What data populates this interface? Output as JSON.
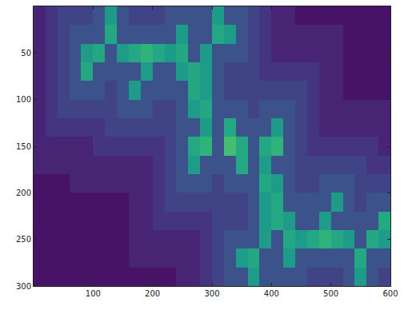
{
  "chart_data": {
    "type": "heatmap",
    "x": [
      10,
      30,
      50,
      70,
      90,
      110,
      130,
      150,
      170,
      190,
      210,
      230,
      250,
      270,
      290,
      310,
      330,
      350,
      370,
      390,
      410,
      430,
      450,
      470,
      490,
      510,
      530,
      550,
      570,
      590
    ],
    "y": [
      10,
      30,
      50,
      70,
      90,
      110,
      130,
      150,
      170,
      190,
      210,
      230,
      250,
      270,
      290
    ],
    "z": [
      [
        2,
        3,
        4,
        4,
        4,
        5,
        11,
        5,
        4,
        4,
        4,
        5,
        5,
        5,
        5,
        11,
        5,
        5,
        4,
        3,
        2,
        2,
        1,
        1,
        1,
        1,
        1,
        1,
        1,
        1
      ],
      [
        2,
        3,
        4,
        5,
        5,
        5,
        12,
        5,
        5,
        5,
        5,
        5,
        11,
        5,
        5,
        12,
        11,
        5,
        4,
        3,
        2,
        2,
        2,
        2,
        2,
        2,
        1,
        1,
        1,
        1
      ],
      [
        2,
        3,
        4,
        5,
        11,
        12,
        5,
        11,
        12,
        13,
        12,
        11,
        12,
        5,
        11,
        5,
        5,
        5,
        4,
        3,
        2,
        2,
        2,
        2,
        2,
        2,
        1,
        1,
        1,
        1
      ],
      [
        2,
        3,
        4,
        5,
        12,
        5,
        5,
        5,
        5,
        11,
        5,
        5,
        11,
        12,
        11,
        5,
        4,
        4,
        4,
        3,
        3,
        3,
        3,
        3,
        2,
        2,
        1,
        1,
        1,
        1
      ],
      [
        2,
        3,
        4,
        5,
        5,
        5,
        4,
        5,
        11,
        5,
        5,
        5,
        5,
        12,
        11,
        5,
        4,
        4,
        4,
        4,
        4,
        4,
        4,
        3,
        2,
        2,
        1,
        1,
        1,
        1
      ],
      [
        2,
        3,
        4,
        4,
        4,
        4,
        4,
        5,
        5,
        5,
        4,
        4,
        5,
        11,
        12,
        5,
        5,
        5,
        4,
        5,
        5,
        5,
        4,
        3,
        2,
        2,
        2,
        2,
        2,
        2
      ],
      [
        2,
        3,
        3,
        3,
        3,
        3,
        4,
        4,
        4,
        4,
        4,
        4,
        5,
        5,
        11,
        5,
        12,
        5,
        5,
        5,
        11,
        5,
        4,
        3,
        2,
        2,
        2,
        2,
        2,
        2
      ],
      [
        2,
        2,
        2,
        2,
        2,
        3,
        3,
        3,
        3,
        3,
        3,
        4,
        5,
        12,
        13,
        5,
        14,
        12,
        5,
        12,
        13,
        5,
        4,
        3,
        3,
        3,
        3,
        3,
        3,
        2
      ],
      [
        2,
        2,
        2,
        2,
        2,
        2,
        2,
        2,
        2,
        2,
        3,
        4,
        5,
        11,
        5,
        5,
        5,
        12,
        5,
        11,
        5,
        5,
        4,
        4,
        4,
        4,
        4,
        4,
        3,
        3
      ],
      [
        1,
        1,
        1,
        2,
        2,
        2,
        2,
        2,
        2,
        2,
        3,
        4,
        5,
        5,
        5,
        4,
        5,
        5,
        5,
        12,
        11,
        5,
        4,
        4,
        5,
        5,
        5,
        4,
        4,
        4
      ],
      [
        1,
        1,
        1,
        1,
        1,
        1,
        1,
        1,
        2,
        2,
        3,
        4,
        4,
        4,
        4,
        4,
        4,
        4,
        5,
        11,
        12,
        5,
        5,
        5,
        5,
        11,
        5,
        4,
        5,
        5
      ],
      [
        1,
        1,
        1,
        1,
        1,
        1,
        1,
        1,
        2,
        2,
        3,
        3,
        3,
        3,
        3,
        4,
        4,
        4,
        5,
        11,
        12,
        11,
        5,
        5,
        11,
        5,
        5,
        5,
        5,
        12
      ],
      [
        1,
        1,
        1,
        1,
        1,
        1,
        1,
        1,
        2,
        2,
        2,
        2,
        2,
        2,
        3,
        4,
        5,
        5,
        5,
        11,
        5,
        12,
        11,
        12,
        13,
        12,
        11,
        5,
        12,
        11
      ],
      [
        1,
        1,
        1,
        1,
        1,
        1,
        1,
        1,
        2,
        2,
        2,
        2,
        2,
        2,
        3,
        4,
        5,
        11,
        12,
        5,
        5,
        11,
        5,
        5,
        5,
        5,
        5,
        12,
        5,
        5
      ],
      [
        1,
        1,
        1,
        1,
        1,
        1,
        1,
        1,
        1,
        1,
        1,
        1,
        2,
        2,
        3,
        4,
        5,
        5,
        11,
        5,
        5,
        5,
        5,
        4,
        4,
        4,
        5,
        11,
        5,
        4
      ]
    ],
    "zlim": [
      0,
      20
    ],
    "xlim": [
      0,
      600
    ],
    "ylim": [
      300,
      0
    ],
    "xticks": [
      100,
      200,
      300,
      400,
      500,
      600
    ],
    "yticks": [
      50,
      100,
      150,
      200,
      250,
      300
    ]
  }
}
